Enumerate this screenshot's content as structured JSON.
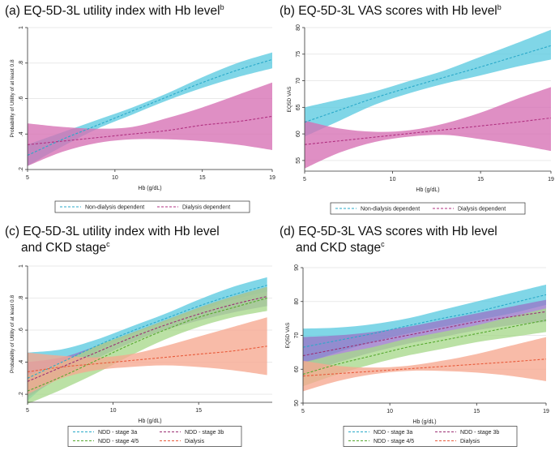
{
  "figure": {
    "panels": [
      {
        "id": "a",
        "title": "(a) EQ-5D-3L utility index with Hb level",
        "title_line2": "",
        "superscript": "b"
      },
      {
        "id": "b",
        "title": "(b) EQ-5D-3L VAS scores with Hb level",
        "title_line2": "",
        "superscript": "b"
      },
      {
        "id": "c",
        "title": "(c) EQ-5D-3L utility index with Hb level",
        "title_line2": "and CKD stage",
        "superscript": "c"
      },
      {
        "id": "d",
        "title": "(d) EQ-5D-3L VAS scores with Hb level",
        "title_line2": "and CKD stage",
        "superscript": "c"
      }
    ]
  },
  "chart_data": [
    {
      "id": "a",
      "type": "line",
      "xlabel": "Hb (g/dL)",
      "ylabel": "Probability of Utility of at least 0.8",
      "xlim": [
        5,
        19
      ],
      "ylim": [
        0.2,
        1
      ],
      "xticks": [
        5,
        10,
        15,
        19
      ],
      "xtick_labels": [
        "5",
        "10",
        "15",
        "19"
      ],
      "yticks": [
        0.2,
        0.4,
        0.6,
        0.8,
        1
      ],
      "ytick_labels": [
        ".2",
        ".4",
        ".6",
        ".8",
        "1"
      ],
      "grid": true,
      "legend_position": "bottom",
      "x": [
        5,
        7,
        9,
        11,
        13,
        15,
        17,
        19
      ],
      "series": [
        {
          "name": "Non-dialysis dependent",
          "color": "#29a9c9",
          "band_color": "#5ccbe0",
          "values": [
            0.28,
            0.37,
            0.45,
            0.53,
            0.61,
            0.69,
            0.76,
            0.82
          ],
          "lower": [
            0.22,
            0.33,
            0.43,
            0.51,
            0.59,
            0.66,
            0.72,
            0.77
          ],
          "upper": [
            0.34,
            0.41,
            0.48,
            0.55,
            0.63,
            0.72,
            0.8,
            0.86
          ]
        },
        {
          "name": "Dialysis dependent",
          "color": "#b03080",
          "band_color": "#d670b4",
          "values": [
            0.34,
            0.36,
            0.38,
            0.4,
            0.42,
            0.45,
            0.47,
            0.5
          ],
          "lower": [
            0.22,
            0.3,
            0.35,
            0.37,
            0.37,
            0.36,
            0.34,
            0.31
          ],
          "upper": [
            0.46,
            0.44,
            0.43,
            0.44,
            0.49,
            0.55,
            0.62,
            0.69
          ]
        }
      ]
    },
    {
      "id": "b",
      "type": "line",
      "xlabel": "Hb (g/dL)",
      "ylabel": "EQ5D VAS",
      "xlim": [
        5,
        19
      ],
      "ylim": [
        53,
        80
      ],
      "xticks": [
        5,
        10,
        15,
        19
      ],
      "xtick_labels": [
        "5",
        "10",
        "15",
        "19"
      ],
      "yticks": [
        55,
        60,
        65,
        70,
        75,
        80
      ],
      "ytick_labels": [
        "55",
        "60",
        "65",
        "70",
        "75",
        "80"
      ],
      "grid": true,
      "legend_position": "bottom",
      "x": [
        5,
        7,
        9,
        11,
        13,
        15,
        17,
        19
      ],
      "series": [
        {
          "name": "Non-dialysis dependent",
          "color": "#29a9c9",
          "band_color": "#5ccbe0",
          "values": [
            62.2,
            64.5,
            66.8,
            68.8,
            70.7,
            72.6,
            74.6,
            76.6
          ],
          "lower": [
            59.5,
            62.5,
            65.5,
            67.7,
            69.5,
            71.0,
            72.6,
            74.0
          ],
          "upper": [
            65.0,
            66.5,
            68.0,
            70.0,
            72.0,
            74.5,
            77.0,
            79.6
          ]
        },
        {
          "name": "Dialysis dependent",
          "color": "#b03080",
          "band_color": "#d670b4",
          "values": [
            58.0,
            58.7,
            59.4,
            60.1,
            60.8,
            61.5,
            62.2,
            63.0
          ],
          "lower": [
            53.5,
            56.5,
            58.5,
            59.5,
            59.8,
            59.0,
            58.0,
            56.8
          ],
          "upper": [
            62.5,
            61.0,
            60.4,
            60.7,
            62.0,
            64.0,
            66.5,
            68.8
          ]
        }
      ]
    },
    {
      "id": "c",
      "type": "line",
      "xlabel": "Hb (g/dL)",
      "ylabel": "Probability of Utility of at least 0.8",
      "xlim": [
        5,
        19.3
      ],
      "ylim": [
        0.15,
        1
      ],
      "xticks": [
        5,
        10,
        15
      ],
      "xtick_labels": [
        "5",
        "10",
        "15"
      ],
      "yticks": [
        0.2,
        0.4,
        0.6,
        0.8,
        1
      ],
      "ytick_labels": [
        ".2",
        ".4",
        ".6",
        ".8",
        "1"
      ],
      "grid": true,
      "legend_position": "bottom",
      "x": [
        5,
        7,
        9,
        11,
        13,
        15,
        17,
        19
      ],
      "series": [
        {
          "name": "NDD - stage 3a",
          "color": "#29a9c9",
          "band_color": "#5ccbe0",
          "values": [
            0.3,
            0.4,
            0.5,
            0.59,
            0.67,
            0.75,
            0.82,
            0.88
          ],
          "lower": [
            0.16,
            0.34,
            0.47,
            0.57,
            0.65,
            0.72,
            0.79,
            0.84
          ],
          "upper": [
            0.46,
            0.48,
            0.54,
            0.62,
            0.7,
            0.79,
            0.87,
            0.93
          ]
        },
        {
          "name": "NDD - stage 3b",
          "color": "#9b2f74",
          "band_color": "#9977c8",
          "values": [
            0.28,
            0.37,
            0.46,
            0.55,
            0.63,
            0.7,
            0.76,
            0.81
          ],
          "lower": [
            0.18,
            0.31,
            0.42,
            0.52,
            0.6,
            0.66,
            0.71,
            0.75
          ],
          "upper": [
            0.4,
            0.43,
            0.5,
            0.58,
            0.66,
            0.74,
            0.81,
            0.87
          ]
        },
        {
          "name": "NDD - stage 4/5",
          "color": "#55a82e",
          "band_color": "#a8d88c",
          "values": [
            0.22,
            0.31,
            0.41,
            0.51,
            0.6,
            0.68,
            0.74,
            0.8
          ],
          "lower": [
            0.14,
            0.23,
            0.33,
            0.44,
            0.54,
            0.62,
            0.68,
            0.72
          ],
          "upper": [
            0.32,
            0.4,
            0.5,
            0.58,
            0.66,
            0.74,
            0.81,
            0.87
          ]
        },
        {
          "name": "Dialysis",
          "color": "#e85a3a",
          "band_color": "#f6a890",
          "values": [
            0.34,
            0.37,
            0.39,
            0.41,
            0.43,
            0.45,
            0.47,
            0.5
          ],
          "lower": [
            0.2,
            0.3,
            0.35,
            0.37,
            0.38,
            0.37,
            0.35,
            0.32
          ],
          "upper": [
            0.46,
            0.44,
            0.43,
            0.45,
            0.5,
            0.56,
            0.62,
            0.68
          ]
        }
      ]
    },
    {
      "id": "d",
      "type": "line",
      "xlabel": "Hb (g/dL)",
      "ylabel": "EQ5D VAS",
      "xlim": [
        5,
        19
      ],
      "ylim": [
        50,
        90
      ],
      "xticks": [
        5,
        10,
        15,
        19
      ],
      "xtick_labels": [
        "5",
        "10",
        "15",
        "19"
      ],
      "yticks": [
        50,
        60,
        70,
        80,
        90
      ],
      "ytick_labels": [
        "50",
        "60",
        "70",
        "80",
        "90"
      ],
      "grid": true,
      "legend_position": "bottom",
      "x": [
        5,
        7,
        9,
        11,
        13,
        15,
        17,
        19
      ],
      "series": [
        {
          "name": "NDD - stage 3a",
          "color": "#29a9c9",
          "band_color": "#5ccbe0",
          "values": [
            66.5,
            68.5,
            70.5,
            72.8,
            75.0,
            77.0,
            79.5,
            82.0
          ],
          "lower": [
            61.5,
            65.0,
            68.0,
            70.5,
            72.5,
            74.5,
            76.5,
            79.0
          ],
          "upper": [
            72.0,
            72.3,
            73.3,
            75.0,
            77.5,
            80.0,
            82.5,
            85.0
          ]
        },
        {
          "name": "NDD - stage 3b",
          "color": "#9b2f74",
          "band_color": "#9977c8",
          "values": [
            64.0,
            66.0,
            68.0,
            70.0,
            72.0,
            74.0,
            75.5,
            77.0
          ],
          "lower": [
            58.5,
            62.0,
            65.0,
            67.5,
            69.5,
            71.5,
            73.0,
            74.0
          ],
          "upper": [
            69.5,
            70.0,
            71.0,
            72.5,
            74.5,
            76.5,
            78.5,
            80.5
          ]
        },
        {
          "name": "NDD - stage 4/5",
          "color": "#55a82e",
          "band_color": "#a8d88c",
          "values": [
            58.5,
            61.5,
            64.0,
            66.5,
            68.5,
            70.5,
            72.5,
            74.5
          ],
          "lower": [
            55.0,
            58.5,
            61.5,
            64.0,
            66.0,
            68.0,
            69.5,
            71.0
          ],
          "upper": [
            62.0,
            64.5,
            66.5,
            69.0,
            71.0,
            73.0,
            75.5,
            78.0
          ]
        },
        {
          "name": "Dialysis",
          "color": "#e85a3a",
          "band_color": "#f6a890",
          "values": [
            58.0,
            58.7,
            59.4,
            60.1,
            60.8,
            61.5,
            62.2,
            63.0
          ],
          "lower": [
            53.5,
            56.5,
            58.5,
            59.5,
            59.5,
            59.0,
            58.0,
            56.5
          ],
          "upper": [
            62.5,
            61.0,
            60.5,
            61.0,
            62.5,
            64.5,
            67.0,
            69.5
          ]
        }
      ]
    }
  ]
}
